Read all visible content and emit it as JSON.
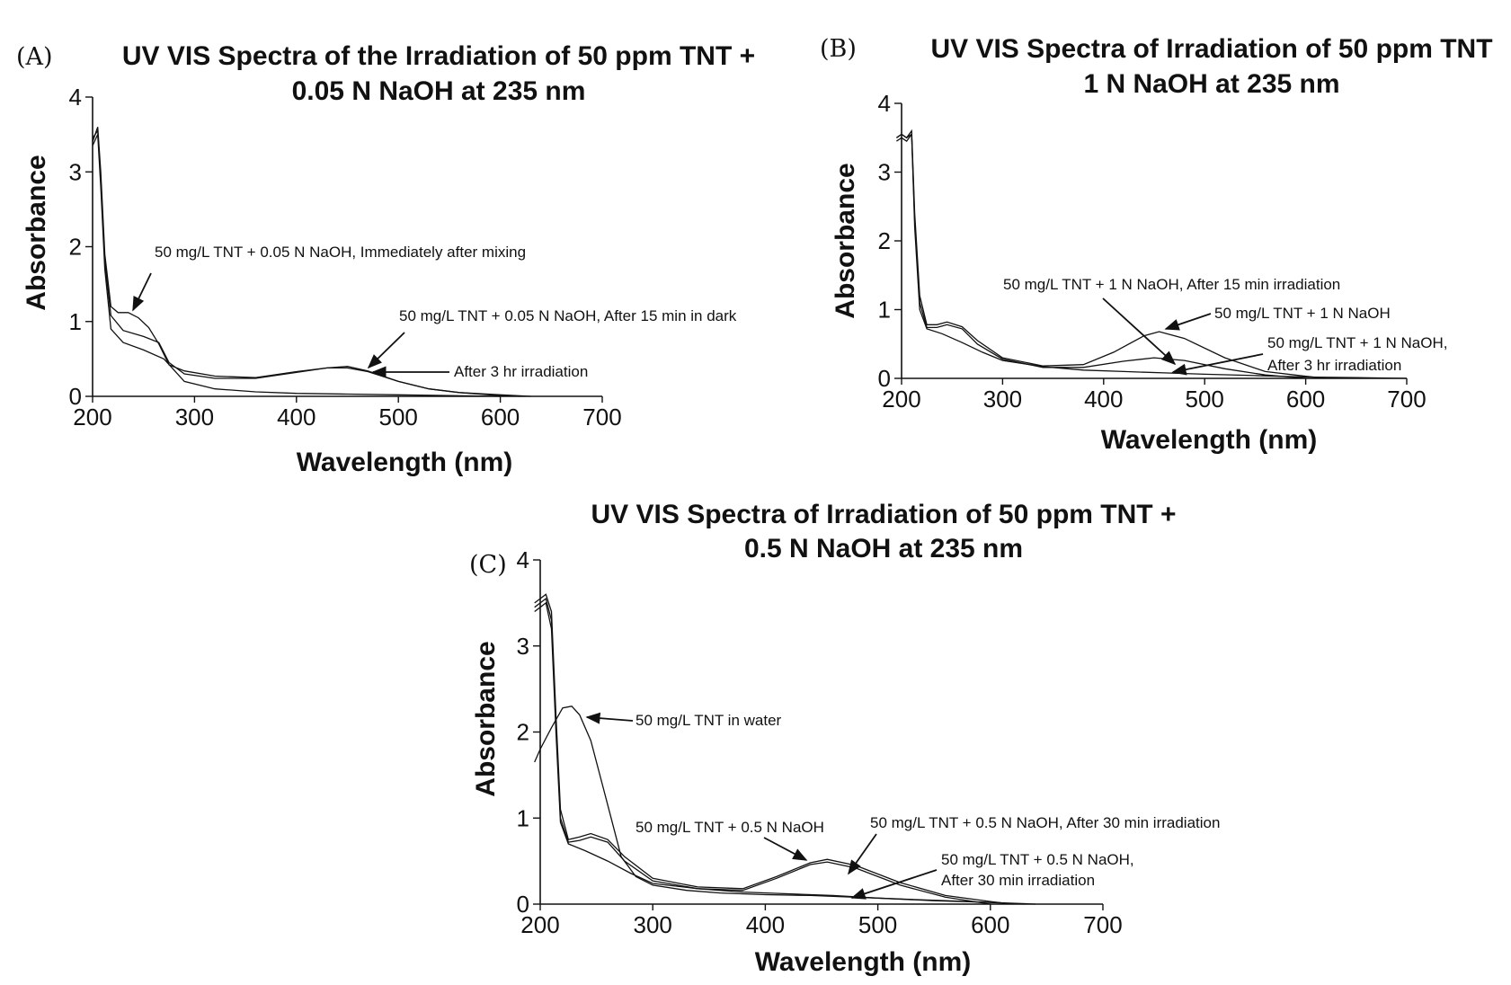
{
  "chart_data": [
    {
      "panel": "(A)",
      "type": "line",
      "title": [
        "UV VIS Spectra of the Irradiation of 50 ppm TNT +",
        "0.05 N NaOH at 235 nm"
      ],
      "xlabel": "Wavelength (nm)",
      "ylabel": "Absorbance",
      "xlim": [
        200,
        700
      ],
      "ylim": [
        0,
        4
      ],
      "xticks": [
        200,
        300,
        400,
        500,
        600,
        700
      ],
      "yticks": [
        0,
        1,
        2,
        3,
        4
      ],
      "grid": false,
      "series": [
        {
          "x": [
            200,
            205,
            208,
            212,
            218,
            225,
            235,
            245,
            255,
            265,
            275,
            290,
            320,
            360,
            400,
            430,
            450,
            470,
            500,
            530,
            560,
            600,
            630
          ],
          "y": [
            3.4,
            3.6,
            3.0,
            1.9,
            1.2,
            1.12,
            1.12,
            1.05,
            0.92,
            0.7,
            0.42,
            0.34,
            0.27,
            0.25,
            0.33,
            0.38,
            0.38,
            0.33,
            0.2,
            0.1,
            0.05,
            0.02,
            0.0
          ]
        },
        {
          "x": [
            200,
            205,
            208,
            212,
            218,
            230,
            250,
            265,
            275,
            290,
            320,
            360,
            400,
            430,
            450,
            470,
            500,
            530,
            560,
            600,
            620
          ],
          "y": [
            3.45,
            3.55,
            2.9,
            1.8,
            1.08,
            0.88,
            0.8,
            0.72,
            0.45,
            0.3,
            0.24,
            0.24,
            0.32,
            0.38,
            0.4,
            0.34,
            0.2,
            0.1,
            0.05,
            0.01,
            0.0
          ]
        },
        {
          "x": [
            200,
            205,
            208,
            212,
            218,
            230,
            250,
            270,
            290,
            320,
            360,
            400,
            450,
            500,
            550,
            600
          ],
          "y": [
            3.35,
            3.5,
            2.8,
            1.7,
            0.9,
            0.72,
            0.62,
            0.5,
            0.2,
            0.1,
            0.06,
            0.04,
            0.03,
            0.02,
            0.01,
            0.0
          ]
        }
      ],
      "annotations": [
        "50 mg/L TNT + 0.05 N NaOH, Immediately after mixing",
        "50 mg/L TNT + 0.05 N NaOH, After 15 min in dark",
        "After 3 hr irradiation"
      ]
    },
    {
      "panel": "(B)",
      "type": "line",
      "title": [
        "UV VIS Spectra of Irradiation of 50 ppm TNT",
        "1 N NaOH at 235 nm"
      ],
      "xlabel": "Wavelength (nm)",
      "ylabel": "Absorbance",
      "xlim": [
        200,
        700
      ],
      "ylim": [
        0,
        4
      ],
      "xticks": [
        200,
        300,
        400,
        500,
        600,
        700
      ],
      "yticks": [
        0,
        1,
        2,
        3,
        4
      ],
      "grid": false,
      "series": [
        {
          "x": [
            195,
            200,
            205,
            210,
            213,
            218,
            225,
            235,
            245,
            260,
            275,
            300,
            340,
            380,
            410,
            440,
            455,
            480,
            520,
            560,
            600,
            620
          ],
          "y": [
            3.5,
            3.55,
            3.5,
            3.6,
            2.4,
            1.2,
            0.78,
            0.78,
            0.82,
            0.75,
            0.55,
            0.3,
            0.18,
            0.2,
            0.38,
            0.62,
            0.68,
            0.58,
            0.3,
            0.1,
            0.03,
            0.0
          ]
        },
        {
          "x": [
            195,
            200,
            205,
            210,
            213,
            218,
            225,
            235,
            245,
            260,
            275,
            300,
            340,
            380,
            420,
            450,
            480,
            520,
            560,
            600
          ],
          "y": [
            3.45,
            3.5,
            3.45,
            3.55,
            2.3,
            1.1,
            0.74,
            0.74,
            0.78,
            0.72,
            0.5,
            0.28,
            0.16,
            0.16,
            0.25,
            0.3,
            0.26,
            0.14,
            0.05,
            0.0
          ]
        },
        {
          "x": [
            195,
            200,
            205,
            210,
            213,
            218,
            225,
            240,
            260,
            280,
            300,
            340,
            380,
            420,
            460,
            500,
            550,
            600,
            650,
            700
          ],
          "y": [
            3.5,
            3.55,
            3.5,
            3.55,
            2.2,
            1.0,
            0.72,
            0.65,
            0.52,
            0.38,
            0.26,
            0.17,
            0.12,
            0.1,
            0.08,
            0.06,
            0.04,
            0.02,
            0.01,
            0.0
          ]
        }
      ],
      "annotations": [
        "50 mg/L TNT + 1 N NaOH, After 15 min irradiation",
        "50 mg/L TNT + 1 N NaOH",
        "50 mg/L TNT + 1 N NaOH,",
        "After 3 hr irradiation"
      ]
    },
    {
      "panel": "(C)",
      "type": "line",
      "title": [
        "UV VIS Spectra of Irradiation of 50 ppm TNT +",
        "0.5 N NaOH at 235 nm"
      ],
      "xlabel": "Wavelength (nm)",
      "ylabel": "Absorbance",
      "xlim": [
        200,
        700
      ],
      "ylim": [
        0,
        4
      ],
      "xticks": [
        200,
        300,
        400,
        500,
        600,
        700
      ],
      "yticks": [
        0,
        1,
        2,
        3,
        4
      ],
      "grid": false,
      "series": [
        {
          "x": [
            195,
            200,
            205,
            210,
            214,
            218,
            225,
            235,
            245,
            260,
            275,
            300,
            340,
            380,
            410,
            440,
            455,
            480,
            520,
            560,
            600,
            620
          ],
          "y": [
            3.5,
            3.55,
            3.6,
            3.4,
            2.2,
            1.1,
            0.75,
            0.78,
            0.82,
            0.75,
            0.55,
            0.3,
            0.2,
            0.18,
            0.32,
            0.48,
            0.52,
            0.45,
            0.25,
            0.1,
            0.03,
            0.0
          ]
        },
        {
          "x": [
            195,
            200,
            205,
            210,
            214,
            218,
            225,
            235,
            245,
            260,
            275,
            300,
            340,
            380,
            410,
            440,
            455,
            480,
            520,
            560,
            600
          ],
          "y": [
            3.45,
            3.5,
            3.55,
            3.3,
            2.1,
            1.0,
            0.72,
            0.74,
            0.78,
            0.72,
            0.5,
            0.27,
            0.18,
            0.16,
            0.3,
            0.46,
            0.49,
            0.42,
            0.22,
            0.08,
            0.0
          ]
        },
        {
          "x": [
            195,
            200,
            205,
            210,
            214,
            218,
            225,
            240,
            260,
            280,
            300,
            340,
            380,
            420,
            460,
            500,
            550,
            600,
            630
          ],
          "y": [
            3.4,
            3.45,
            3.5,
            3.2,
            2.0,
            0.95,
            0.7,
            0.62,
            0.5,
            0.36,
            0.24,
            0.18,
            0.14,
            0.12,
            0.1,
            0.07,
            0.04,
            0.02,
            0.0
          ]
        },
        {
          "x": [
            195,
            200,
            210,
            220,
            228,
            235,
            245,
            255,
            265,
            272,
            285,
            300,
            330,
            360,
            400,
            440,
            480,
            520,
            560,
            600,
            640
          ],
          "y": [
            1.65,
            1.8,
            2.05,
            2.28,
            2.3,
            2.2,
            1.9,
            1.4,
            0.9,
            0.55,
            0.32,
            0.22,
            0.16,
            0.13,
            0.11,
            0.1,
            0.08,
            0.06,
            0.04,
            0.02,
            0.0
          ]
        }
      ],
      "annotations": [
        "50 mg/L TNT in water",
        "50 mg/L TNT + 0.5 N NaOH",
        "50 mg/L TNT + 0.5 N NaOH, After 30 min irradiation",
        "50 mg/L TNT + 0.5 N NaOH,",
        "After 30 min irradiation"
      ]
    }
  ]
}
